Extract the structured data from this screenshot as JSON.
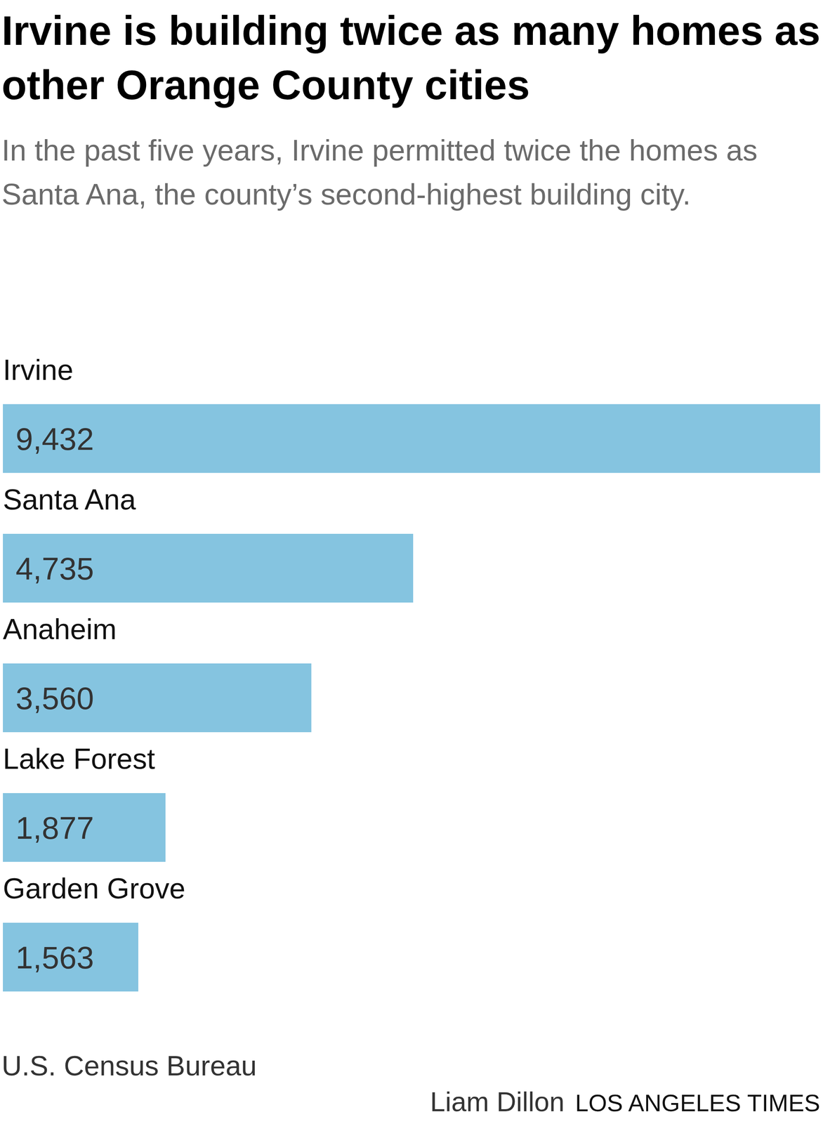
{
  "chart_data": {
    "type": "bar",
    "orientation": "horizontal",
    "title": "Irvine is building twice as many homes as other Orange County cities",
    "subtitle": "In the past five years, Irvine permitted twice the homes as Santa Ana, the county’s second-highest building city.",
    "categories": [
      "Irvine",
      "Santa Ana",
      "Anaheim",
      "Lake Forest",
      "Garden Grove"
    ],
    "values": [
      9432,
      4735,
      3560,
      1877,
      1563
    ],
    "value_labels": [
      "9,432",
      "4,735",
      "3,560",
      "1,877",
      "1,563"
    ],
    "color": "#85c4e0",
    "xlim": [
      0,
      9432
    ],
    "tick_labels": false,
    "grid": false,
    "data_labels": true,
    "source": "U.S. Census Bureau",
    "byline": "Liam Dillon",
    "publisher": "LOS ANGELES TIMES"
  }
}
